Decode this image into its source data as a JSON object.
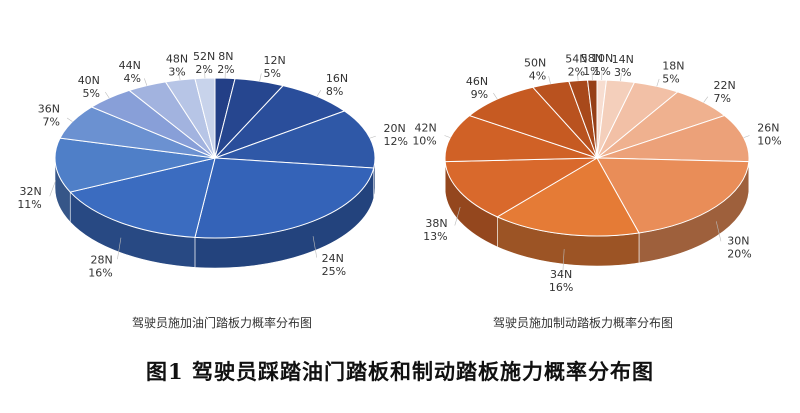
{
  "figure_caption": "图1 驾驶员踩踏油门踏板和制动踏板施力概率分布图",
  "chart_data": [
    {
      "type": "pie",
      "title": "驾驶员施加油门踏板力概率分布图",
      "categories": [
        "8N",
        "12N",
        "16N",
        "20N",
        "24N",
        "28N",
        "32N",
        "36N",
        "40N",
        "44N",
        "48N",
        "52N"
      ],
      "values": [
        2,
        5,
        8,
        12,
        25,
        16,
        11,
        7,
        5,
        4,
        3,
        2
      ],
      "value_labels": [
        "2%",
        "5%",
        "8%",
        "12%",
        "25%",
        "16%",
        "11%",
        "7%",
        "5%",
        "4%",
        "3%",
        "2%"
      ],
      "colors": [
        "#233f86",
        "#26468f",
        "#2a4e9b",
        "#2f58a7",
        "#3463b8",
        "#3b6cc0",
        "#4f7fc8",
        "#6b91d1",
        "#889fd8",
        "#a2b3df",
        "#b7c5e6",
        "#c8d3eb"
      ]
    },
    {
      "type": "pie",
      "title": "驾驶员施加制动踏板力概率分布图",
      "categories": [
        "10N",
        "14N",
        "18N",
        "22N",
        "26N",
        "30N",
        "34N",
        "38N",
        "42N",
        "46N",
        "50N",
        "54N",
        "58N"
      ],
      "values": [
        1,
        3,
        5,
        7,
        10,
        20,
        16,
        13,
        10,
        9,
        4,
        2,
        1
      ],
      "value_labels": [
        "1%",
        "3%",
        "5%",
        "7%",
        "10%",
        "20%",
        "16%",
        "13%",
        "10%",
        "9%",
        "4%",
        "2%",
        "1%"
      ],
      "colors": [
        "#f7ddd0",
        "#f4cfbb",
        "#f2c0a6",
        "#efb18f",
        "#eca179",
        "#e98d58",
        "#e57b36",
        "#d9692c",
        "#d06126",
        "#c65a22",
        "#b9521f",
        "#a8491b",
        "#963f17"
      ]
    }
  ]
}
